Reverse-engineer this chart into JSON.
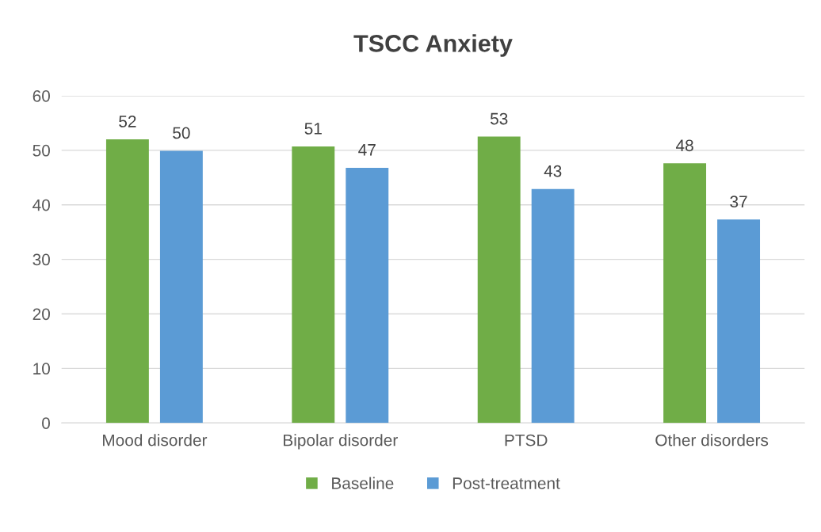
{
  "chart_data": {
    "type": "bar",
    "title": "TSCC Anxiety",
    "categories": [
      "Mood disorder",
      "Bipolar disorder",
      "PTSD",
      "Other disorders"
    ],
    "series": [
      {
        "name": "Baseline",
        "color": "#70ad47",
        "values": [
          52.0,
          50.7,
          52.5,
          47.6
        ],
        "value_labels": [
          "52",
          "51",
          "53",
          "48"
        ]
      },
      {
        "name": "Post-treatment",
        "color": "#5b9bd5",
        "values": [
          49.9,
          46.8,
          42.9,
          37.3
        ],
        "value_labels": [
          "50",
          "47",
          "43",
          "37"
        ]
      }
    ],
    "ylim": [
      0,
      60
    ],
    "yticks": [
      0,
      10,
      20,
      30,
      40,
      50,
      60
    ],
    "grid": "y",
    "legend": "bottom"
  }
}
